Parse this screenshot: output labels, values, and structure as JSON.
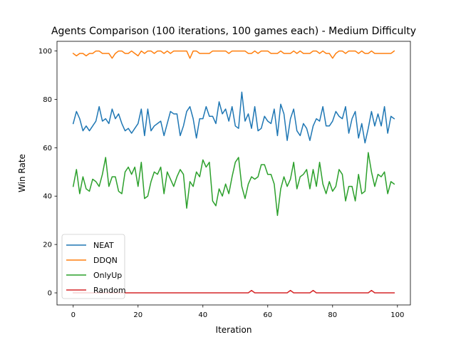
{
  "chart_data": {
    "type": "line",
    "title": "Agents Comparison (100 iterations, 100 games each) - Medium Difficulty",
    "xlabel": "Iteration",
    "ylabel": "Win Rate",
    "xlim": [
      -5,
      104
    ],
    "ylim": [
      -5,
      104
    ],
    "xticks": [
      0,
      20,
      40,
      60,
      80,
      100
    ],
    "yticks": [
      0,
      20,
      40,
      60,
      80,
      100
    ],
    "grid": false,
    "legend_position": "lower-left",
    "x": [
      0,
      1,
      2,
      3,
      4,
      5,
      6,
      7,
      8,
      9,
      10,
      11,
      12,
      13,
      14,
      15,
      16,
      17,
      18,
      19,
      20,
      21,
      22,
      23,
      24,
      25,
      26,
      27,
      28,
      29,
      30,
      31,
      32,
      33,
      34,
      35,
      36,
      37,
      38,
      39,
      40,
      41,
      42,
      43,
      44,
      45,
      46,
      47,
      48,
      49,
      50,
      51,
      52,
      53,
      54,
      55,
      56,
      57,
      58,
      59,
      60,
      61,
      62,
      63,
      64,
      65,
      66,
      67,
      68,
      69,
      70,
      71,
      72,
      73,
      74,
      75,
      76,
      77,
      78,
      79,
      80,
      81,
      82,
      83,
      84,
      85,
      86,
      87,
      88,
      89,
      90,
      91,
      92,
      93,
      94,
      95,
      96,
      97,
      98,
      99
    ],
    "series": [
      {
        "name": "NEAT",
        "color": "#1f77b4",
        "values": [
          70,
          75,
          72,
          67,
          69,
          67,
          69,
          71,
          77,
          71,
          72,
          70,
          76,
          72,
          74,
          70,
          67,
          68,
          66,
          68,
          70,
          76,
          65,
          76,
          67,
          69,
          70,
          71,
          65,
          70,
          75,
          74,
          74,
          65,
          69,
          75,
          77,
          72,
          64,
          72,
          72,
          77,
          73,
          73,
          70,
          79,
          74,
          76,
          71,
          77,
          69,
          68,
          83,
          71,
          74,
          68,
          77,
          67,
          68,
          73,
          71,
          70,
          76,
          65,
          78,
          74,
          63,
          72,
          76,
          67,
          65,
          70,
          68,
          63,
          69,
          72,
          71,
          77,
          69,
          69,
          71,
          75,
          73,
          72,
          77,
          66,
          72,
          75,
          64,
          70,
          62,
          68,
          75,
          69,
          74,
          69,
          77,
          66,
          73,
          72
        ]
      },
      {
        "name": "DDQN",
        "color": "#ff7f0e",
        "values": [
          99,
          98,
          99,
          99,
          98,
          99,
          99,
          100,
          100,
          99,
          99,
          99,
          97,
          99,
          100,
          100,
          99,
          99,
          100,
          99,
          98,
          100,
          99,
          100,
          100,
          99,
          100,
          100,
          99,
          100,
          99,
          100,
          100,
          100,
          100,
          100,
          97,
          100,
          100,
          99,
          99,
          99,
          99,
          100,
          100,
          100,
          100,
          100,
          99,
          100,
          100,
          100,
          100,
          100,
          99,
          99,
          100,
          99,
          100,
          100,
          100,
          99,
          99,
          99,
          100,
          99,
          99,
          99,
          100,
          99,
          100,
          99,
          99,
          99,
          100,
          100,
          99,
          100,
          99,
          99,
          97,
          99,
          100,
          100,
          99,
          100,
          100,
          100,
          99,
          100,
          99,
          99,
          100,
          99,
          99,
          99,
          99,
          99,
          99,
          100
        ]
      },
      {
        "name": "OnlyUp",
        "color": "#2ca02c",
        "values": [
          44,
          51,
          41,
          48,
          43,
          42,
          47,
          46,
          44,
          49,
          56,
          44,
          48,
          48,
          42,
          41,
          50,
          52,
          49,
          52,
          44,
          54,
          39,
          40,
          46,
          50,
          49,
          52,
          41,
          50,
          47,
          44,
          48,
          51,
          49,
          35,
          46,
          44,
          50,
          48,
          55,
          52,
          54,
          38,
          36,
          43,
          40,
          45,
          41,
          48,
          54,
          56,
          44,
          39,
          45,
          48,
          47,
          48,
          53,
          53,
          49,
          49,
          45,
          32,
          43,
          48,
          44,
          47,
          54,
          43,
          48,
          49,
          51,
          43,
          51,
          44,
          54,
          45,
          41,
          46,
          42,
          44,
          51,
          49,
          38,
          44,
          44,
          38,
          49,
          41,
          42,
          58,
          50,
          44,
          49,
          48,
          50,
          41,
          46,
          45
        ]
      },
      {
        "name": "Random",
        "color": "#d62728",
        "values": [
          0,
          0,
          0,
          0,
          0,
          0,
          0,
          0,
          0,
          0,
          0,
          0,
          0,
          0,
          0,
          0,
          0,
          0,
          0,
          0,
          0,
          0,
          0,
          0,
          0,
          0,
          0,
          0,
          0,
          0,
          0,
          0,
          0,
          0,
          0,
          0,
          0,
          0,
          0,
          0,
          0,
          0,
          0,
          0,
          0,
          0,
          0,
          0,
          0,
          0,
          0,
          0,
          0,
          0,
          0,
          1,
          0,
          0,
          0,
          0,
          0,
          0,
          0,
          0,
          0,
          0,
          0,
          1,
          0,
          0,
          0,
          0,
          0,
          0,
          1,
          0,
          0,
          0,
          0,
          0,
          0,
          0,
          0,
          0,
          0,
          0,
          0,
          0,
          0,
          0,
          0,
          0,
          1,
          0,
          0,
          0,
          0,
          0,
          0,
          0
        ]
      }
    ]
  }
}
